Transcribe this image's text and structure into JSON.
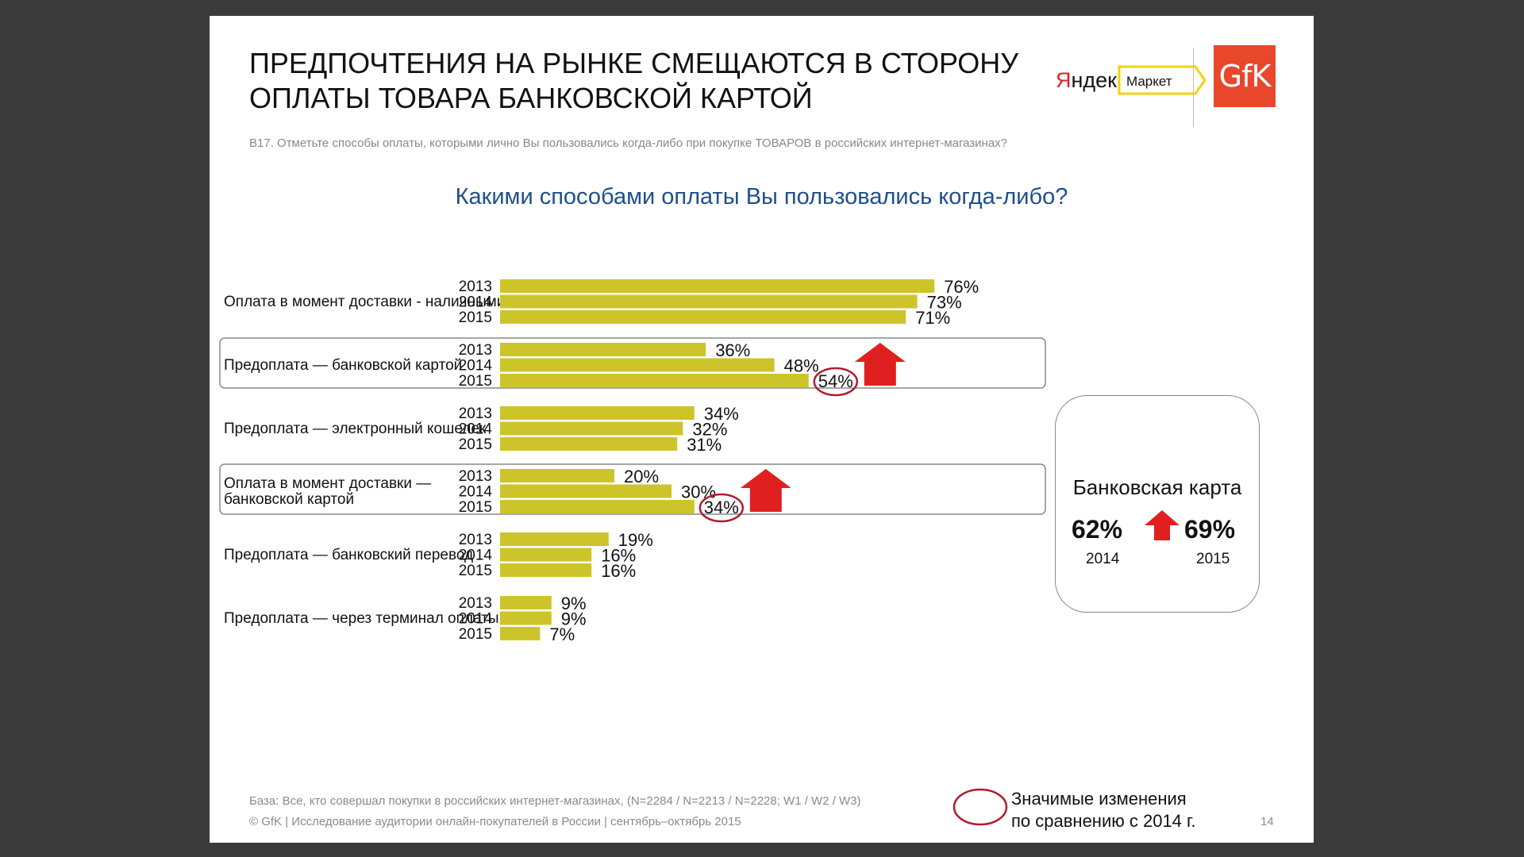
{
  "slide": {
    "title_lines": [
      "ПРЕДПОЧТЕНИЯ НА РЫНКЕ СМЕЩАЮТСЯ В СТОРОНУ",
      "ОПЛАТЫ ТОВАРА БАНКОВСКОЙ КАРТОЙ"
    ],
    "question": "В17. Отметьте способы оплаты, которыми лично Вы пользовались когда-либо при покупке ТОВАРОВ в российских интернет-магазинах?",
    "yandex_logo_text": "Яндекс",
    "market_label": "Маркет",
    "gfk_logo_text": "GfK",
    "base_note": "База: Все, кто совершал покупки в российских интернет-магазинах, (N=2284 / N=2213 / N=2228; W1 / W2 / W3)",
    "copyright": "© GfK | Исследование аудитории онлайн-покупателей в России | сентябрь–октябрь 2015",
    "page_number": "14",
    "legend_lines": [
      "Значимые изменения",
      "по сравнению с 2014 г."
    ]
  },
  "callout": {
    "title": "Банковская карта",
    "value_2014": "62%",
    "value_2015": "69%",
    "year_a": "2014",
    "year_b": "2015"
  },
  "colors": {
    "bar": "#cdc42a",
    "arrow": "#e02020",
    "circle": "#b01c2e",
    "chart_title": "#1e4f8c"
  },
  "chart_data": {
    "type": "bar",
    "orientation": "horizontal",
    "title": "Какими способами оплаты Вы пользовались когда-либо?",
    "years": [
      "2013",
      "2014",
      "2015"
    ],
    "xlim": [
      0,
      100
    ],
    "categories": [
      {
        "label_lines": [
          "Оплата в момент доставки - наличными"
        ],
        "values": [
          76,
          73,
          71
        ],
        "significant": [],
        "highlight": false,
        "up_arrow": false
      },
      {
        "label_lines": [
          "Предоплата — банковской картой"
        ],
        "values": [
          36,
          48,
          54
        ],
        "significant": [
          2
        ],
        "highlight": true,
        "up_arrow": true
      },
      {
        "label_lines": [
          "Предоплата — электронный кошелек"
        ],
        "values": [
          34,
          32,
          31
        ],
        "significant": [],
        "highlight": false,
        "up_arrow": false
      },
      {
        "label_lines": [
          "Оплата в момент доставки —",
          "банковской картой"
        ],
        "values": [
          20,
          30,
          34
        ],
        "significant": [
          2
        ],
        "highlight": true,
        "up_arrow": true
      },
      {
        "label_lines": [
          "Предоплата — банковский перевод"
        ],
        "values": [
          19,
          16,
          16
        ],
        "significant": [],
        "highlight": false,
        "up_arrow": false
      },
      {
        "label_lines": [
          "Предоплата — через терминал оплаты"
        ],
        "values": [
          9,
          9,
          7
        ],
        "significant": [],
        "highlight": false,
        "up_arrow": false
      }
    ]
  }
}
